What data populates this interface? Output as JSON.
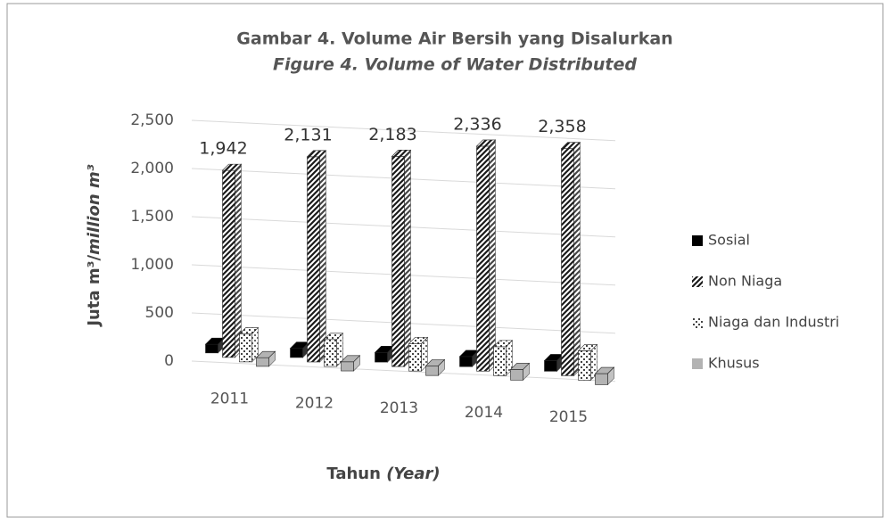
{
  "chart_data": {
    "type": "bar3d",
    "title": "Gambar 4. Volume Air Bersih yang Disalurkan",
    "subtitle": "Figure 4. Volume of Water Distributed",
    "ylabel": [
      "Juta m³/",
      "million m³"
    ],
    "xlabel": [
      "Tahun ",
      "(Year)"
    ],
    "categories": [
      "2011",
      "2012",
      "2013",
      "2014",
      "2015"
    ],
    "series": [
      {
        "name": "Sosial",
        "color": "#000000",
        "pattern": "solid",
        "values": [
          90,
          95,
          100,
          105,
          110
        ]
      },
      {
        "name": "Non Niaga",
        "color": "#1a1a1a",
        "pattern": "diagonal",
        "values": [
          1942,
          2131,
          2183,
          2336,
          2358
        ],
        "value_labels": [
          "1,942",
          "2,131",
          "2,183",
          "2,336",
          "2,358"
        ]
      },
      {
        "name": "Niaga dan Industri",
        "color": "#444444",
        "pattern": "dots",
        "values": [
          290,
          280,
          285,
          300,
          305
        ]
      },
      {
        "name": "Khusus",
        "color": "#b3b3b3",
        "pattern": "solid",
        "values": [
          90,
          95,
          100,
          110,
          115
        ]
      }
    ],
    "ylim": [
      0,
      2500
    ],
    "yticks": [
      0,
      500,
      {
        "value": 1000,
        "label": "1,000"
      },
      {
        "value": 1500,
        "label": "1,500"
      },
      {
        "value": 2000,
        "label": "2,000"
      },
      {
        "value": 2500,
        "label": "2,500"
      }
    ],
    "grid": true,
    "legend": "right"
  }
}
